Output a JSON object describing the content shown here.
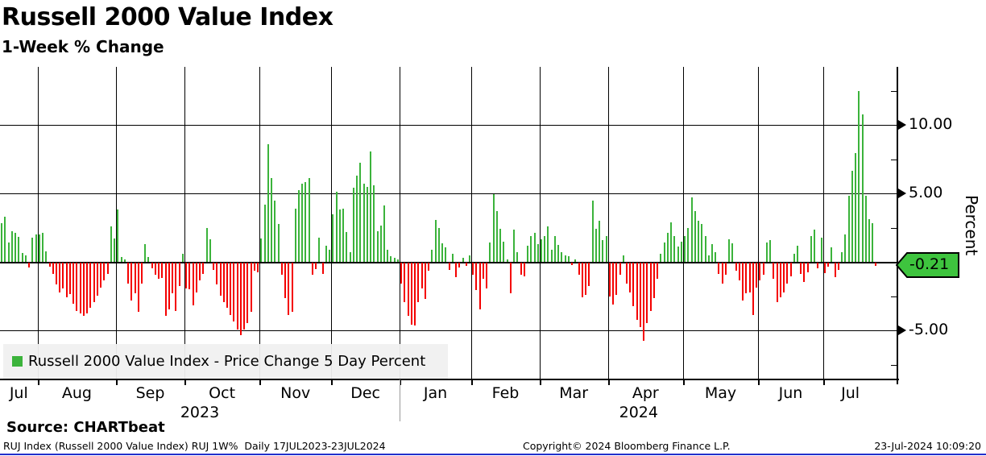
{
  "header": {
    "title": "Russell 2000 Value Index",
    "subtitle": "1-Week % Change"
  },
  "legend": {
    "label": "Russell 2000 Value Index - Price Change 5 Day Percent"
  },
  "axis": {
    "ylabel": "Percent",
    "major_ticks": [
      {
        "value": 10,
        "label": "10.00"
      },
      {
        "value": 5,
        "label": "5.00"
      },
      {
        "value": -5,
        "label": "-5.00"
      }
    ],
    "minor_tick_values": [
      12.5,
      7.5,
      2.5,
      -2.5,
      -7.5
    ],
    "gridline_values": [
      10,
      5,
      0,
      -5
    ],
    "last_value": -0.21,
    "last_value_label": "-0.21"
  },
  "footer": {
    "source_line": "Source: CHARTbeat",
    "terminal_line": "RUJ Index (Russell 2000 Value Index) RUJ 1W%  Daily 17JUL2023-23JUL2024",
    "copyright": "Copyright© 2024 Bloomberg Finance L.P.",
    "timestamp": "23-Jul-2024 10:09:20"
  },
  "colors": {
    "up_green": "#3bb33b",
    "down_red": "#f40000",
    "badge_green": "#3ec43e",
    "grid_black": "#000000",
    "year_separator_gray": "#999999",
    "legend_bg": "#f0f0f0",
    "bottom_rule_blue": "#2230cc"
  },
  "chart_data": {
    "type": "bar",
    "title": "Russell 2000 Value Index",
    "subtitle": "1-Week % Change",
    "ylabel": "Percent",
    "series_name": "Russell 2000 Value Index - Price Change 5 Day Percent",
    "x_range": "17JUL2023-23JUL2024",
    "frequency": "Daily",
    "ylim": [
      -8.5,
      14.2
    ],
    "grid": true,
    "legend_position": "bottom-left",
    "right_padding_slots": 6,
    "months": [
      {
        "label": "Jul",
        "year": "2023",
        "days": 11
      },
      {
        "label": "Aug",
        "year": "2023",
        "days": 23
      },
      {
        "label": "Sep",
        "year": "2023",
        "days": 20
      },
      {
        "label": "Oct",
        "year": "2023",
        "days": 22
      },
      {
        "label": "Nov",
        "year": "2023",
        "days": 21
      },
      {
        "label": "Dec",
        "year": "2023",
        "days": 20
      },
      {
        "label": "Jan",
        "year": "2024",
        "days": 21
      },
      {
        "label": "Feb",
        "year": "2024",
        "days": 20
      },
      {
        "label": "Mar",
        "year": "2024",
        "days": 20
      },
      {
        "label": "Apr",
        "year": "2024",
        "days": 22
      },
      {
        "label": "May",
        "year": "2024",
        "days": 22
      },
      {
        "label": "Jun",
        "year": "2024",
        "days": 19
      },
      {
        "label": "Jul",
        "year": "2024",
        "days": 16
      }
    ],
    "values": [
      2.8,
      3.3,
      1.4,
      2.25,
      2.1,
      1.85,
      0.65,
      0.5,
      -0.35,
      1.75,
      2.0,
      2.0,
      2.1,
      0.78,
      -0.3,
      -0.85,
      -1.6,
      -2.2,
      -1.9,
      -2.5,
      -2.3,
      -3.0,
      -3.5,
      -3.7,
      -3.9,
      -3.7,
      -3.3,
      -2.9,
      -2.4,
      -1.8,
      -1.3,
      -0.8,
      2.6,
      1.7,
      3.8,
      0.35,
      0.15,
      -1.5,
      -2.75,
      -2.25,
      -3.6,
      -1.5,
      1.3,
      0.35,
      -0.4,
      -0.9,
      -1.2,
      -1.1,
      -3.9,
      -3.4,
      -2.25,
      -3.5,
      -1.7,
      0.6,
      -1.85,
      -1.95,
      -3.1,
      -2.2,
      -1.3,
      -0.8,
      2.45,
      1.67,
      -0.5,
      -1.6,
      -2.4,
      -2.9,
      -3.3,
      -3.8,
      -4.3,
      -4.9,
      -5.3,
      -4.9,
      -4.4,
      -3.6,
      -0.6,
      -0.7,
      1.73,
      4.2,
      8.57,
      6.1,
      4.5,
      2.75,
      -0.9,
      -2.6,
      -3.8,
      -3.6,
      3.88,
      5.25,
      5.7,
      5.85,
      6.1,
      -0.88,
      -0.45,
      1.76,
      -0.8,
      1.2,
      0.9,
      3.5,
      5.1,
      3.8,
      3.9,
      2.2,
      0.7,
      5.4,
      6.3,
      7.25,
      5.7,
      5.5,
      8.04,
      5.6,
      2.25,
      2.65,
      4.1,
      0.9,
      0.4,
      0.3,
      0.15,
      -1.5,
      -2.85,
      -3.9,
      -4.5,
      -4.6,
      -2.85,
      -1.9,
      -2.65,
      -0.6,
      0.88,
      3.04,
      2.45,
      1.37,
      1.08,
      -0.5,
      0.6,
      -1.08,
      -0.35,
      0.3,
      -0.25,
      0.45,
      -0.9,
      -2.0,
      -3.4,
      -1.2,
      -1.9,
      1.4,
      4.94,
      3.7,
      2.4,
      1.5,
      0.2,
      -2.25,
      2.35,
      0.7,
      -0.9,
      -1.0,
      1.2,
      1.9,
      2.1,
      1.3,
      1.67,
      1.86,
      2.6,
      0.9,
      1.86,
      1.24,
      0.7,
      0.5,
      0.4,
      -0.15,
      0.15,
      -0.9,
      -2.5,
      -2.35,
      -1.7,
      4.45,
      2.4,
      3.0,
      1.57,
      1.9,
      -2.45,
      -3.04,
      -2.35,
      -0.9,
      0.45,
      -1.5,
      -2.2,
      -3.2,
      -4.2,
      -4.7,
      -5.7,
      -4.4,
      -3.5,
      -2.6,
      -1.2,
      0.6,
      1.4,
      2.1,
      2.9,
      1.9,
      1.1,
      1.5,
      1.9,
      2.5,
      4.7,
      3.7,
      3.0,
      2.75,
      1.9,
      0.45,
      1.3,
      0.7,
      -0.8,
      -1.5,
      -0.9,
      1.67,
      1.37,
      -0.6,
      -1.3,
      -2.75,
      -2.25,
      -2.16,
      -3.8,
      -1.8,
      -1.27,
      -0.9,
      1.43,
      1.57,
      -1.2,
      -2.9,
      -2.5,
      -2.2,
      -1.5,
      -1.0,
      0.6,
      1.18,
      -0.8,
      -1.4,
      -0.7,
      1.86,
      2.35,
      -0.4,
      1.76,
      -0.78,
      -0.3,
      1.08,
      -1.08,
      -0.5,
      0.69,
      2.0,
      4.8,
      6.67,
      7.94,
      12.45,
      10.78,
      4.8,
      3.14,
      2.84,
      -0.21
    ]
  }
}
